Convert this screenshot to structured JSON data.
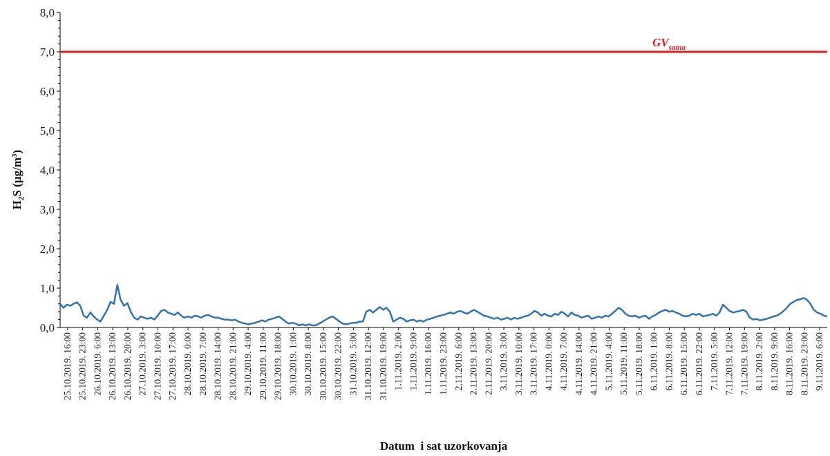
{
  "chart_data": {
    "type": "line",
    "xlabel": "Datum  i sat uzorkovanja",
    "ylabel": "H2S (µg/m3)",
    "ylabel_parts": {
      "main": "H",
      "sub": "2",
      "mid": "S (µg/m",
      "sup": "3",
      "end": ")"
    },
    "ylim": [
      0,
      8
    ],
    "y_ticks": [
      "0,0",
      "1,0",
      "2,0",
      "3,0",
      "4,0",
      "5,0",
      "6,0",
      "7,0",
      "8,0"
    ],
    "y_tick_values": [
      0,
      1,
      2,
      3,
      4,
      5,
      6,
      7,
      8
    ],
    "x_tick_labels": [
      "25.10.2019. 16:00",
      "25.10.2019. 23:00",
      "26.10.2019. 6:00",
      "26.10.2019. 13:00",
      "26.10.2019. 20:00",
      "27.10.2019. 3:00",
      "27.10.2019. 10:00",
      "27.10.2019. 17:00",
      "28.10.2019. 0:00",
      "28.10.2019. 7:00",
      "28.10.2019. 14:00",
      "28.10.2019. 21:00",
      "29.10.2019. 4:00",
      "29.10.2019. 11:00",
      "29.10.2019. 18:00",
      "30.10.2019. 1:00",
      "30.10.2019. 8:00",
      "30.10.2019. 15:00",
      "30.10.2019. 22:00",
      "31.10.2019. 5:00",
      "31.10.2019. 12:00",
      "31.10.2019. 19:00",
      "1.11.2019. 2:00",
      "1.11.2019. 9:00",
      "1.11.2019. 16:00",
      "1.11.2019. 23:00",
      "2.11.2019. 6:00",
      "2.11.2019. 13:00",
      "2.11.2019. 20:00",
      "3.11.2019. 3:00",
      "3.11.2019. 10:00",
      "3.11.2019. 17:00",
      "4.11.2019. 0:00",
      "4.11.2019. 7:00",
      "4.11.2019. 14:00",
      "4.11.2019. 21:00",
      "5.11.2019. 4:00",
      "5.11.2019. 11:00",
      "5.11.2019. 18:00",
      "6.11.2019. 1:00",
      "6.11.2019. 8:00",
      "6.11.2019. 15:00",
      "6.11.2019. 22:00",
      "7.11.2019. 5:00",
      "7.11.2019. 12:00",
      "7.11.2019. 19:00",
      "8.11.2019. 2:00",
      "8.11.2019. 9:00",
      "8.11.2019. 16:00",
      "8.11.2019. 23:00",
      "9.11.2019. 6:00"
    ],
    "series": [
      {
        "values": [
          0.6,
          0.5,
          0.58,
          0.55,
          0.6,
          0.64,
          0.55,
          0.3,
          0.25,
          0.38,
          0.28,
          0.2,
          0.15,
          0.3,
          0.45,
          0.65,
          0.6,
          1.08,
          0.7,
          0.55,
          0.62,
          0.4,
          0.25,
          0.2,
          0.28,
          0.25,
          0.22,
          0.25,
          0.2,
          0.3,
          0.42,
          0.45,
          0.38,
          0.35,
          0.32,
          0.38,
          0.3,
          0.25,
          0.28,
          0.25,
          0.3,
          0.28,
          0.25,
          0.3,
          0.32,
          0.28,
          0.25,
          0.25,
          0.22,
          0.2,
          0.2,
          0.18,
          0.2,
          0.15,
          0.12,
          0.1,
          0.08,
          0.1,
          0.12,
          0.15,
          0.18,
          0.15,
          0.2,
          0.22,
          0.25,
          0.28,
          0.22,
          0.15,
          0.1,
          0.12,
          0.1,
          0.05,
          0.08,
          0.05,
          0.08,
          0.05,
          0.06,
          0.1,
          0.15,
          0.2,
          0.25,
          0.28,
          0.22,
          0.15,
          0.1,
          0.08,
          0.1,
          0.12,
          0.12,
          0.15,
          0.15,
          0.4,
          0.45,
          0.38,
          0.45,
          0.52,
          0.45,
          0.5,
          0.4,
          0.15,
          0.2,
          0.25,
          0.22,
          0.15,
          0.18,
          0.2,
          0.15,
          0.18,
          0.15,
          0.2,
          0.22,
          0.25,
          0.28,
          0.3,
          0.32,
          0.35,
          0.38,
          0.35,
          0.4,
          0.42,
          0.38,
          0.35,
          0.4,
          0.45,
          0.4,
          0.35,
          0.3,
          0.28,
          0.25,
          0.22,
          0.25,
          0.2,
          0.22,
          0.25,
          0.2,
          0.25,
          0.22,
          0.25,
          0.28,
          0.3,
          0.35,
          0.42,
          0.38,
          0.3,
          0.35,
          0.3,
          0.28,
          0.35,
          0.32,
          0.4,
          0.35,
          0.28,
          0.38,
          0.32,
          0.3,
          0.25,
          0.28,
          0.3,
          0.22,
          0.25,
          0.28,
          0.25,
          0.3,
          0.28,
          0.35,
          0.42,
          0.5,
          0.45,
          0.35,
          0.3,
          0.28,
          0.3,
          0.25,
          0.28,
          0.3,
          0.22,
          0.28,
          0.32,
          0.38,
          0.42,
          0.45,
          0.4,
          0.42,
          0.38,
          0.35,
          0.3,
          0.28,
          0.3,
          0.35,
          0.32,
          0.35,
          0.28,
          0.3,
          0.32,
          0.35,
          0.3,
          0.38,
          0.58,
          0.5,
          0.42,
          0.38,
          0.4,
          0.42,
          0.45,
          0.4,
          0.25,
          0.2,
          0.22,
          0.18,
          0.2,
          0.22,
          0.25,
          0.28,
          0.3,
          0.35,
          0.42,
          0.5,
          0.6,
          0.65,
          0.7,
          0.72,
          0.75,
          0.7,
          0.6,
          0.45,
          0.38,
          0.35,
          0.3,
          0.28
        ]
      }
    ],
    "reference_line": {
      "value": 7.0,
      "label_main": "GV",
      "label_sub": "satna",
      "color": "#e31b1b"
    },
    "series_color": "#2f73b5",
    "grid": false,
    "legend": "none"
  }
}
